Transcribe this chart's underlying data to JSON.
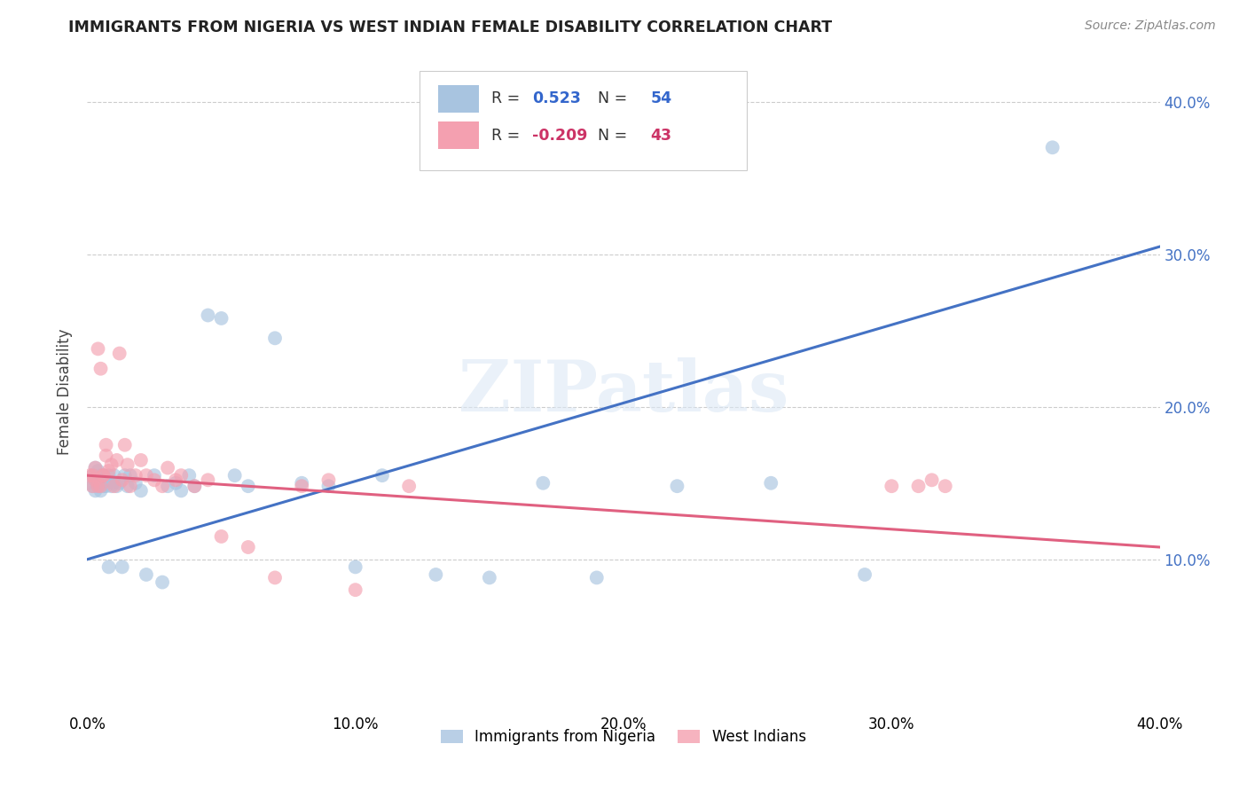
{
  "title": "IMMIGRANTS FROM NIGERIA VS WEST INDIAN FEMALE DISABILITY CORRELATION CHART",
  "source": "Source: ZipAtlas.com",
  "ylabel": "Female Disability",
  "xlim": [
    0.0,
    0.4
  ],
  "ylim": [
    0.0,
    0.42
  ],
  "yticks": [
    0.1,
    0.2,
    0.3,
    0.4
  ],
  "xticks": [
    0.0,
    0.1,
    0.2,
    0.3,
    0.4
  ],
  "xtick_labels": [
    "0.0%",
    "10.0%",
    "20.0%",
    "30.0%",
    "40.0%"
  ],
  "ytick_labels": [
    "10.0%",
    "20.0%",
    "30.0%",
    "40.0%"
  ],
  "background_color": "#ffffff",
  "watermark": "ZIPatlas",
  "blue_color": "#a8c4e0",
  "pink_color": "#f4a0b0",
  "blue_line_color": "#4472c4",
  "pink_line_color": "#e06080",
  "ytick_color": "#4472c4",
  "nigeria_x": [
    0.001,
    0.002,
    0.002,
    0.003,
    0.003,
    0.003,
    0.004,
    0.004,
    0.004,
    0.005,
    0.005,
    0.005,
    0.006,
    0.006,
    0.007,
    0.007,
    0.008,
    0.008,
    0.009,
    0.01,
    0.01,
    0.011,
    0.012,
    0.013,
    0.014,
    0.015,
    0.016,
    0.018,
    0.02,
    0.022,
    0.025,
    0.028,
    0.03,
    0.033,
    0.035,
    0.038,
    0.04,
    0.045,
    0.05,
    0.055,
    0.06,
    0.07,
    0.08,
    0.09,
    0.1,
    0.11,
    0.13,
    0.15,
    0.17,
    0.19,
    0.22,
    0.255,
    0.29,
    0.36
  ],
  "nigeria_y": [
    0.15,
    0.148,
    0.155,
    0.152,
    0.145,
    0.16,
    0.148,
    0.153,
    0.158,
    0.145,
    0.15,
    0.155,
    0.148,
    0.155,
    0.148,
    0.152,
    0.095,
    0.155,
    0.148,
    0.15,
    0.155,
    0.148,
    0.15,
    0.095,
    0.155,
    0.148,
    0.155,
    0.15,
    0.145,
    0.09,
    0.155,
    0.085,
    0.148,
    0.15,
    0.145,
    0.155,
    0.148,
    0.26,
    0.258,
    0.155,
    0.148,
    0.245,
    0.15,
    0.148,
    0.095,
    0.155,
    0.09,
    0.088,
    0.15,
    0.088,
    0.148,
    0.15,
    0.09,
    0.37
  ],
  "westindian_x": [
    0.001,
    0.002,
    0.002,
    0.003,
    0.003,
    0.004,
    0.004,
    0.005,
    0.005,
    0.006,
    0.006,
    0.007,
    0.007,
    0.008,
    0.009,
    0.01,
    0.011,
    0.012,
    0.013,
    0.014,
    0.015,
    0.016,
    0.018,
    0.02,
    0.022,
    0.025,
    0.028,
    0.03,
    0.033,
    0.035,
    0.04,
    0.045,
    0.05,
    0.06,
    0.07,
    0.08,
    0.09,
    0.1,
    0.12,
    0.3,
    0.31,
    0.315,
    0.32
  ],
  "westindian_y": [
    0.155,
    0.148,
    0.155,
    0.152,
    0.16,
    0.148,
    0.238,
    0.148,
    0.225,
    0.155,
    0.155,
    0.175,
    0.168,
    0.158,
    0.162,
    0.148,
    0.165,
    0.235,
    0.152,
    0.175,
    0.162,
    0.148,
    0.155,
    0.165,
    0.155,
    0.152,
    0.148,
    0.16,
    0.152,
    0.155,
    0.148,
    0.152,
    0.115,
    0.108,
    0.088,
    0.148,
    0.152,
    0.08,
    0.148,
    0.148,
    0.148,
    0.152,
    0.148
  ],
  "blue_line_x0": 0.0,
  "blue_line_y0": 0.1,
  "blue_line_x1": 0.4,
  "blue_line_y1": 0.305,
  "pink_line_x0": 0.0,
  "pink_line_y0": 0.155,
  "pink_line_x1": 0.4,
  "pink_line_y1": 0.108
}
